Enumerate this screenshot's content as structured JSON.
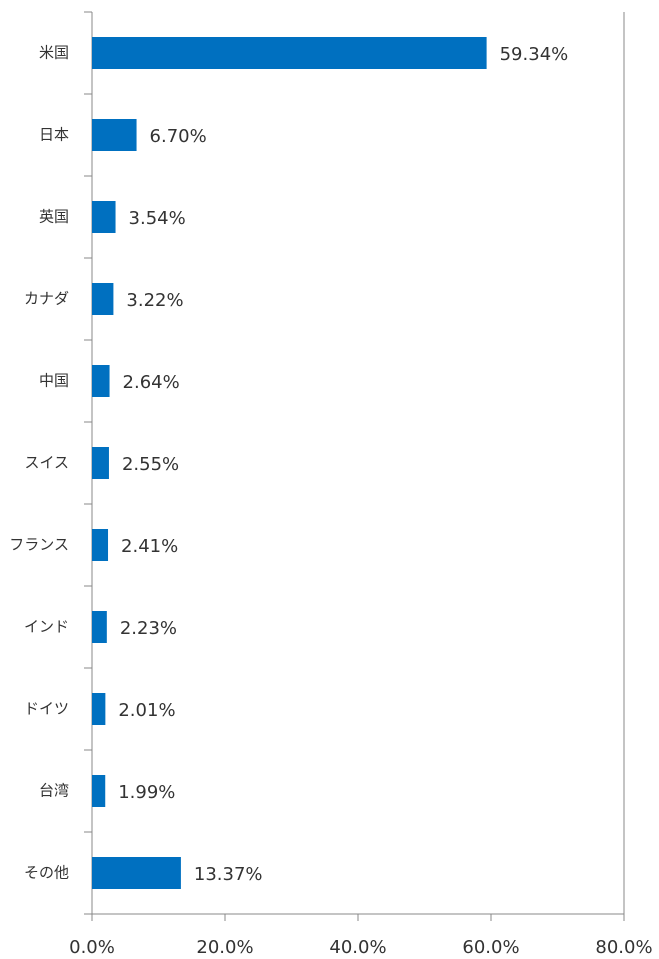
{
  "chart_data": {
    "type": "bar",
    "orientation": "horizontal",
    "categories": [
      "米国",
      "日本",
      "英国",
      "カナダ",
      "中国",
      "スイス",
      "フランス",
      "インド",
      "ドイツ",
      "台湾",
      "その他"
    ],
    "values": [
      59.34,
      6.7,
      3.54,
      3.22,
      2.64,
      2.55,
      2.41,
      2.23,
      2.01,
      1.99,
      13.37
    ],
    "value_labels": [
      "59.34%",
      "6.70%",
      "3.54%",
      "3.22%",
      "2.64%",
      "2.55%",
      "2.41%",
      "2.23%",
      "2.01%",
      "1.99%",
      "13.37%"
    ],
    "color": "#0070c0",
    "xlim": [
      0,
      80
    ],
    "xticks": [
      {
        "value": 0,
        "label": "0.0%"
      },
      {
        "value": 20,
        "label": "20.0%"
      },
      {
        "value": 40,
        "label": "40.0%"
      },
      {
        "value": 60,
        "label": "60.0%"
      },
      {
        "value": 80,
        "label": "80.0%"
      }
    ]
  }
}
